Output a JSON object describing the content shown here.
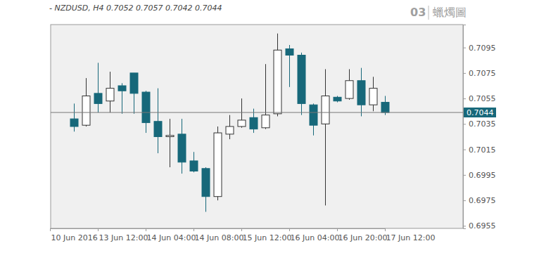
{
  "chart_data": {
    "type": "candlestick",
    "title": "- NZDUSD, H4 0.7052 0.7057 0.7042 0.7044",
    "annotations": [
      "03",
      "蠟燭圖"
    ],
    "categories": [
      "10 Jun 2016",
      null,
      null,
      null,
      "13 Jun 12:00",
      null,
      null,
      null,
      "14 Jun 04:00",
      null,
      null,
      null,
      "14 Jun 08:00",
      null,
      null,
      null,
      "15 Jun 12:00",
      null,
      null,
      null,
      "16 Jun 04:00",
      null,
      null,
      null,
      "16 Jun 20:00",
      null,
      null,
      null,
      "17 Jun 12:00"
    ],
    "open": [
      null,
      null,
      0.7039,
      0.7034,
      0.7059,
      0.7053,
      0.7065,
      0.7075,
      0.706,
      0.7037,
      0.7025,
      0.7027,
      0.7006,
      0.7,
      0.6978,
      0.7027,
      0.7033,
      0.704,
      0.7032,
      0.7043,
      0.7094,
      0.7089,
      0.705,
      0.7035,
      0.7056,
      0.7055,
      0.7069,
      0.705,
      0.7052
    ],
    "high": [
      null,
      null,
      0.7051,
      0.7071,
      0.7083,
      0.7076,
      0.7067,
      0.7075,
      0.7061,
      0.7063,
      0.7039,
      0.7039,
      0.7013,
      0.7001,
      0.7033,
      0.7042,
      0.7055,
      0.7047,
      0.7082,
      0.7106,
      0.7097,
      0.7091,
      0.7051,
      0.7078,
      0.7057,
      0.7078,
      0.7079,
      0.7072,
      0.7057
    ],
    "low": [
      null,
      null,
      0.7029,
      0.7033,
      0.7044,
      0.7044,
      0.7043,
      0.7043,
      0.7028,
      0.7012,
      0.7001,
      0.6996,
      0.6997,
      0.6966,
      0.6975,
      0.7023,
      0.7032,
      0.7028,
      0.7031,
      0.7041,
      0.7064,
      0.7042,
      0.7026,
      0.6971,
      0.7052,
      0.7054,
      0.7041,
      0.7045,
      0.7042
    ],
    "close": [
      null,
      null,
      0.7033,
      0.7057,
      0.7051,
      0.7063,
      0.7061,
      0.7059,
      0.7036,
      0.7025,
      0.7026,
      0.7005,
      0.6998,
      0.6978,
      0.7028,
      0.7033,
      0.7038,
      0.7031,
      0.7042,
      0.7093,
      0.7089,
      0.7051,
      0.7034,
      0.7057,
      0.7053,
      0.7069,
      0.705,
      0.7063,
      0.7044
    ],
    "color": "#17687a",
    "price_line": 0.7044,
    "ylim": [
      0.6953,
      0.7113
    ],
    "yticks": [
      0.6955,
      0.6975,
      0.6995,
      0.7015,
      0.7035,
      0.7055,
      0.7075,
      0.7095
    ],
    "grid": false
  }
}
